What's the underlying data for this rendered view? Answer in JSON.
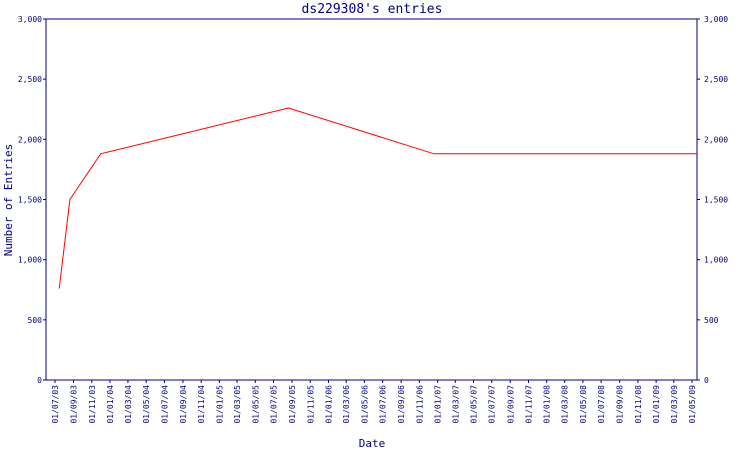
{
  "chart_data": {
    "type": "line",
    "title": "ds229308's entries",
    "xlabel": "Date",
    "ylabel": "Number of Entries",
    "ylim": [
      0,
      3000
    ],
    "grid": false,
    "yticks": [
      0,
      500,
      1000,
      1500,
      2000,
      2500,
      3000
    ],
    "ytick_labels": [
      "0",
      "500",
      "1,000",
      "1,500",
      "2,000",
      "2,500",
      "3,000"
    ],
    "xticks": [
      "01/07/03",
      "01/09/03",
      "01/11/03",
      "01/01/04",
      "01/03/04",
      "01/05/04",
      "01/07/04",
      "01/09/04",
      "01/11/04",
      "01/01/05",
      "01/03/05",
      "01/05/05",
      "01/07/05",
      "01/09/05",
      "01/11/05",
      "01/01/06",
      "01/03/06",
      "01/05/06",
      "01/07/06",
      "01/09/06",
      "01/11/06",
      "01/01/07",
      "01/03/07",
      "01/05/07",
      "01/07/07",
      "01/09/07",
      "01/11/07",
      "01/01/08",
      "01/03/08",
      "01/05/08",
      "01/07/08",
      "01/09/08",
      "01/11/08",
      "01/01/09",
      "01/03/09",
      "01/05/09"
    ],
    "colors": {
      "line": "#ff0000",
      "axis": "#000080",
      "text": "#000080"
    },
    "series": [
      {
        "x": [
          "2003-07-15",
          "2003-08-20",
          "2003-12-01",
          "2005-08-20",
          "2006-12-20",
          "2009-05-20"
        ],
        "values": [
          760,
          1500,
          1880,
          2260,
          1880,
          1880
        ]
      }
    ]
  }
}
